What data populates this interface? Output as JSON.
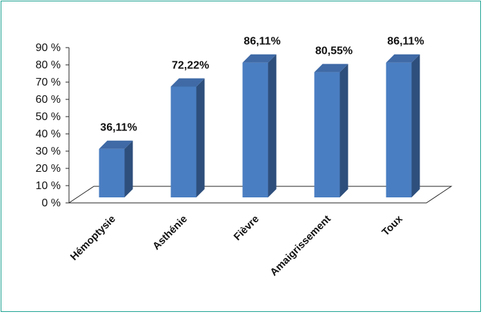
{
  "chart_data": {
    "type": "bar",
    "categories": [
      "Hémoptysie",
      "Asthénie",
      "Fièvre",
      "Amaigrissement",
      "Toux"
    ],
    "values": [
      36.11,
      72.22,
      86.11,
      80.55,
      86.11
    ],
    "data_labels": [
      "36,11%",
      "72,22%",
      "86,11%",
      "80,55%",
      "86,11%"
    ],
    "y_ticks": [
      "0 %",
      "10 %",
      "20 %",
      "30 %",
      "40 %",
      "50 %",
      "60 %",
      "70 %",
      "80 %",
      "90 %"
    ],
    "ylim": [
      0,
      90
    ],
    "grid": false,
    "legend": false,
    "style": "3d",
    "colors": {
      "bar_front": "#4a7ec2",
      "bar_side": "#2e4f7c",
      "bar_top": "#3f6aa6",
      "frame": "#1aa190"
    }
  }
}
